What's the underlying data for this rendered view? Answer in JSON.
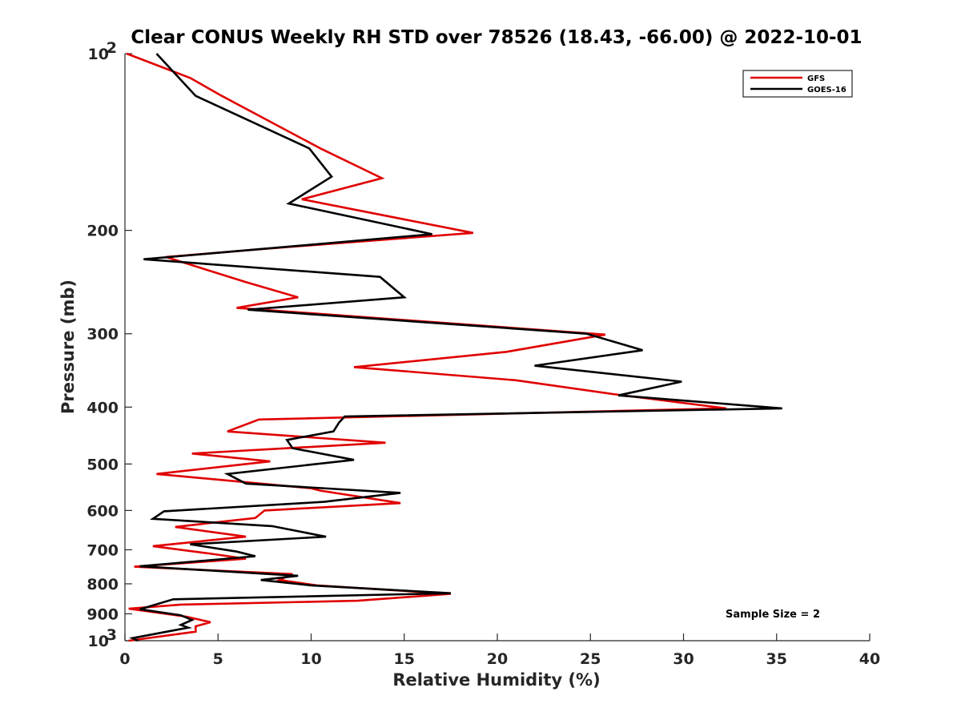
{
  "chart_data": {
    "type": "line",
    "title": "Clear CONUS Weekly RH STD over 78526 (18.43, -66.00) @ 2022-10-01",
    "xlabel": "Relative Humidity (%)",
    "ylabel": "Pressure (mb)",
    "xlim": [
      0,
      40
    ],
    "ylim": [
      100,
      1000
    ],
    "y_scale": "log",
    "y_reversed": true,
    "x_ticks": [
      "0",
      "5",
      "10",
      "15",
      "20",
      "25",
      "30",
      "35",
      "40"
    ],
    "y_ticks": [
      {
        "value": 100,
        "label": "10",
        "sup": "2"
      },
      {
        "value": 200,
        "label": "200",
        "sup": ""
      },
      {
        "value": 300,
        "label": "300",
        "sup": ""
      },
      {
        "value": 400,
        "label": "400",
        "sup": ""
      },
      {
        "value": 500,
        "label": "500",
        "sup": ""
      },
      {
        "value": 600,
        "label": "600",
        "sup": ""
      },
      {
        "value": 700,
        "label": "700",
        "sup": ""
      },
      {
        "value": 800,
        "label": "800",
        "sup": ""
      },
      {
        "value": 900,
        "label": "900",
        "sup": ""
      },
      {
        "value": 1000,
        "label": "10",
        "sup": "3"
      }
    ],
    "legend_position": "top-right",
    "grid": false,
    "annotation": "Sample Size = 2",
    "series": [
      {
        "name": "GFS",
        "color": "#e00000",
        "points": [
          [
            0.1,
            100
          ],
          [
            3.5,
            110
          ],
          [
            5.2,
            118
          ],
          [
            10.5,
            145
          ],
          [
            13.8,
            163
          ],
          [
            9.5,
            177
          ],
          [
            18.7,
            202
          ],
          [
            7.5,
            215
          ],
          [
            2.2,
            222
          ],
          [
            6.5,
            245
          ],
          [
            9.3,
            260
          ],
          [
            6.0,
            271
          ],
          [
            25.8,
            301
          ],
          [
            20.5,
            322
          ],
          [
            12.3,
            342
          ],
          [
            21.0,
            360
          ],
          [
            26.2,
            380
          ],
          [
            32.3,
            402
          ],
          [
            7.2,
            420
          ],
          [
            5.5,
            440
          ],
          [
            14.0,
            460
          ],
          [
            3.6,
            480
          ],
          [
            7.8,
            495
          ],
          [
            1.7,
            520
          ],
          [
            10.0,
            550
          ],
          [
            10.5,
            555
          ],
          [
            14.8,
            583
          ],
          [
            7.5,
            600
          ],
          [
            7.0,
            618
          ],
          [
            2.7,
            640
          ],
          [
            6.5,
            665
          ],
          [
            1.5,
            690
          ],
          [
            4.5,
            710
          ],
          [
            6.5,
            725
          ],
          [
            0.5,
            748
          ],
          [
            9.0,
            770
          ],
          [
            8.3,
            788
          ],
          [
            10.3,
            805
          ],
          [
            17.5,
            832
          ],
          [
            12.5,
            855
          ],
          [
            3.0,
            868
          ],
          [
            0.2,
            882
          ],
          [
            3.3,
            910
          ],
          [
            4.6,
            930
          ],
          [
            3.8,
            945
          ],
          [
            3.8,
            965
          ],
          [
            0.2,
            1000
          ]
        ]
      },
      {
        "name": "GOES-16",
        "color": "#000000",
        "points": [
          [
            1.7,
            100
          ],
          [
            3.8,
            118
          ],
          [
            9.9,
            145
          ],
          [
            11.1,
            162
          ],
          [
            8.8,
            180
          ],
          [
            16.5,
            203
          ],
          [
            1.0,
            224
          ],
          [
            13.7,
            240
          ],
          [
            15.0,
            260
          ],
          [
            6.6,
            273
          ],
          [
            24.8,
            300
          ],
          [
            27.8,
            320
          ],
          [
            22.0,
            340
          ],
          [
            29.9,
            362
          ],
          [
            26.5,
            382
          ],
          [
            35.3,
            402
          ],
          [
            11.8,
            415
          ],
          [
            11.5,
            425
          ],
          [
            11.2,
            440
          ],
          [
            8.7,
            455
          ],
          [
            9.0,
            470
          ],
          [
            12.3,
            492
          ],
          [
            5.5,
            520
          ],
          [
            6.5,
            540
          ],
          [
            14.8,
            560
          ],
          [
            10.7,
            580
          ],
          [
            2.1,
            602
          ],
          [
            1.5,
            620
          ],
          [
            7.9,
            638
          ],
          [
            10.8,
            665
          ],
          [
            3.5,
            685
          ],
          [
            6.0,
            705
          ],
          [
            7.0,
            718
          ],
          [
            0.8,
            747
          ],
          [
            9.3,
            775
          ],
          [
            7.3,
            788
          ],
          [
            10.0,
            805
          ],
          [
            17.5,
            830
          ],
          [
            2.6,
            850
          ],
          [
            0.8,
            884
          ],
          [
            3.0,
            905
          ],
          [
            3.6,
            922
          ],
          [
            3.0,
            940
          ],
          [
            3.4,
            950
          ],
          [
            0.4,
            990
          ],
          [
            0.7,
            1000
          ]
        ]
      }
    ]
  }
}
